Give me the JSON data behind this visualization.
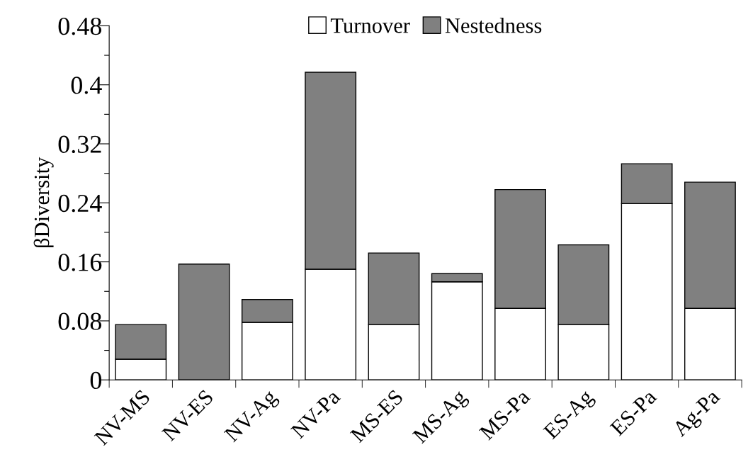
{
  "chart_data": {
    "type": "bar",
    "stacked": true,
    "ylabel": "βDiversity",
    "categories": [
      "NV-MS",
      "NV-ES",
      "NV-Ag",
      "NV-Pa",
      "MS-ES",
      "MS-Ag",
      "MS-Pa",
      "ES-Ag",
      "ES-Pa",
      "Ag-Pa"
    ],
    "series": [
      {
        "name": "Turnover",
        "color": "#ffffff",
        "values": [
          0.028,
          0,
          0.078,
          0.15,
          0.075,
          0.133,
          0.097,
          0.075,
          0.239,
          0.097
        ]
      },
      {
        "name": "Nestedness",
        "color": "#808080",
        "values": [
          0.047,
          0.157,
          0.031,
          0.267,
          0.097,
          0.011,
          0.161,
          0.108,
          0.054,
          0.171
        ]
      }
    ],
    "ylim": [
      0,
      0.48
    ],
    "yticks": [
      0,
      {
        "value": 0.04,
        "label": null
      },
      0.08,
      {
        "value": 0.12,
        "label": null
      },
      0.16,
      {
        "value": 0.2,
        "label": null
      },
      0.24,
      {
        "value": 0.28,
        "label": null
      },
      0.32,
      {
        "value": 0.36,
        "label": null
      },
      0.4,
      {
        "value": 0.44,
        "label": null
      },
      0.48
    ],
    "grid": false,
    "legend": "top"
  }
}
